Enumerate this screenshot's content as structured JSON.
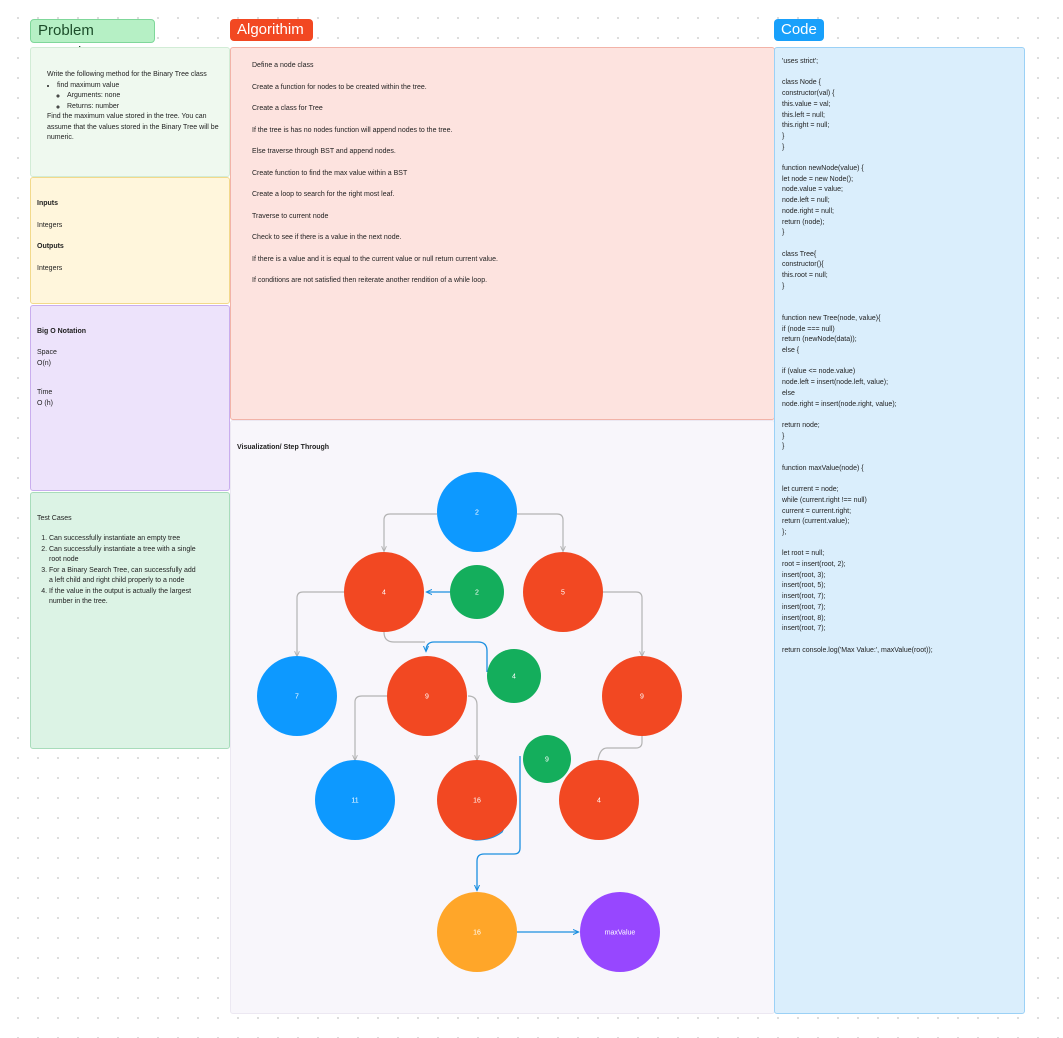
{
  "tags": {
    "problem": "Problem Domain",
    "algorithm": "Algorithim",
    "code": "Code"
  },
  "problem": {
    "intro": "Write the following method for the Binary Tree class",
    "method": "find maximum value",
    "arguments": "Arguments: none",
    "returns": "Returns: number",
    "description": "Find the maximum value stored in the tree. You can assume that the values stored in the Binary Tree will be numeric."
  },
  "io": {
    "inputs_label": "Inputs",
    "inputs_value": "Integers",
    "outputs_label": "Outputs",
    "outputs_value": "Integers"
  },
  "bigo": {
    "title": "Big O Notation",
    "space_label": "Space",
    "space_value": "O(n)",
    "time_label": "Time",
    "time_value": "O (h)"
  },
  "tests": {
    "title": "Test Cases",
    "items": [
      "Can successfully instantiate an empty tree",
      "Can successfully instantiate a tree with a single root node",
      "For a Binary Search Tree, can successfully add a left child and right child properly to a node",
      "If the value in the output is actually the largest number in the tree."
    ]
  },
  "algorithm": {
    "steps": [
      "Define a node class",
      "Create a function for nodes to be created within the tree.",
      "Create a class for Tree",
      "If the tree is has no nodes function will append nodes to the tree.",
      "Else traverse through BST and append nodes.",
      "Create function to find the max value within a BST",
      "Create a loop to search for the right most leaf.",
      "Traverse to current node",
      "Check to see if there is a value in the next node.",
      "If there is a value and it is equal to the current value or null return current value.",
      "If conditions are not satisfied then reiterate another rendition of a while loop."
    ]
  },
  "visualization": {
    "title": "Visualization/ Step Through",
    "colors": {
      "blue": "#0d99ff",
      "red": "#f24822",
      "green": "#14ae5c",
      "orange": "#ffa629",
      "purple": "#9747ff",
      "line": "#b3b3b3",
      "annot": "#1b8fe0"
    },
    "nodes": [
      {
        "label": "2",
        "color": "blue"
      },
      {
        "label": "4",
        "color": "red"
      },
      {
        "label": "2",
        "color": "green"
      },
      {
        "label": "5",
        "color": "red"
      },
      {
        "label": "7",
        "color": "blue"
      },
      {
        "label": "9",
        "color": "red"
      },
      {
        "label": "4",
        "color": "green"
      },
      {
        "label": "9",
        "color": "red"
      },
      {
        "label": "9",
        "color": "green"
      },
      {
        "label": "11",
        "color": "blue"
      },
      {
        "label": "16",
        "color": "red"
      },
      {
        "label": "4",
        "color": "red"
      },
      {
        "label": "16",
        "color": "orange"
      },
      {
        "label": "maxValue",
        "color": "purple"
      }
    ]
  },
  "code": "'uses strict';\n\nclass Node {\nconstructor(val) {\nthis.value = val;\nthis.left = null;\nthis.right = null;\n}\n}\n\nfunction newNode(value) {\nlet node = new Node();\nnode.value = value;\nnode.left = null;\nnode.right = null;\nreturn (node);\n}\n\nclass Tree{\nconstructor(){\nthis.root = null;\n}\n\n\nfunction new Tree(node, value){\nif (node === null)\nreturn (newNode(data));\nelse {\n\nif (value <= node.value)\nnode.left = insert(node.left, value);\nelse\nnode.right = insert(node.right, value);\n\nreturn node;\n}\n}\n\nfunction maxValue(node) {\n\nlet current = node;\nwhile (current.right !== null)\ncurrent = current.right;\nreturn (current.value);\n};\n\nlet root = null;\nroot = insert(root, 2);\ninsert(root, 3);\ninsert(root, 5);\ninsert(root, 7);\ninsert(root, 7);\ninsert(root, 8);\ninsert(root, 7);\n\nreturn console.log('Max Value:', maxValue(root));"
}
